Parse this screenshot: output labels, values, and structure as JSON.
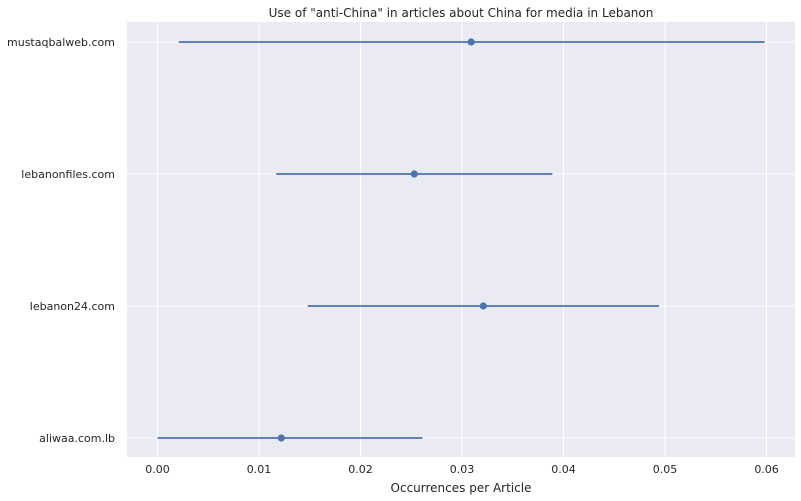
{
  "chart_data": {
    "type": "scatter",
    "title": "Use of \"anti-China\" in articles about China for media in Lebanon",
    "xlabel": "Occurrences per Article",
    "ylabel": "",
    "xlim": [
      -0.003,
      0.0628
    ],
    "x_ticks": [
      "0.00",
      "0.01",
      "0.02",
      "0.03",
      "0.04",
      "0.05",
      "0.06"
    ],
    "x_tick_values": [
      0.0,
      0.01,
      0.02,
      0.03,
      0.04,
      0.05,
      0.06
    ],
    "categories": [
      "mustaqbalweb.com",
      "lebanonfiles.com",
      "lebanon24.com",
      "aliwaa.com.lb"
    ],
    "points": [
      {
        "label": "mustaqbalweb.com",
        "mean": 0.0309,
        "low": 0.0021,
        "high": 0.0598
      },
      {
        "label": "lebanonfiles.com",
        "mean": 0.0253,
        "low": 0.0117,
        "high": 0.0389
      },
      {
        "label": "lebanon24.com",
        "mean": 0.0321,
        "low": 0.0148,
        "high": 0.0494
      },
      {
        "label": "aliwaa.com.lb",
        "mean": 0.0122,
        "low": 0.0,
        "high": 0.0261
      }
    ],
    "grid": true,
    "colors": {
      "background": "#eaeaf2",
      "grid": "#ffffff",
      "series": "#4c72b0",
      "text": "#262626"
    }
  }
}
